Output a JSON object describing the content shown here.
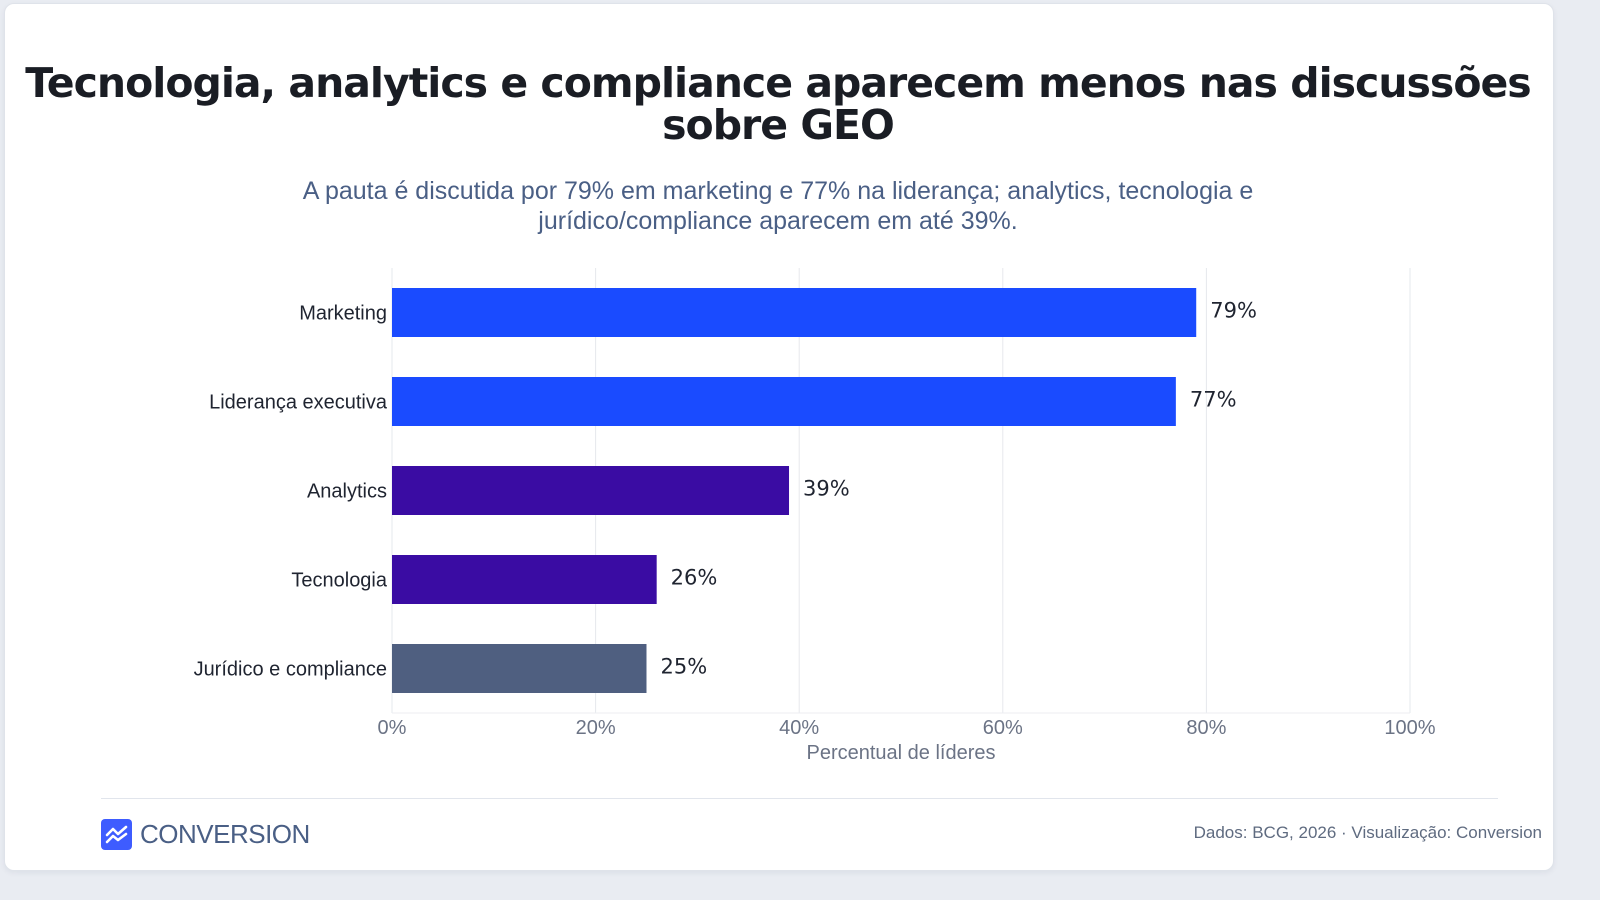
{
  "chart_data": {
    "type": "bar",
    "orientation": "horizontal",
    "title": "Tecnologia, analytics e compliance aparecem menos nas discussões sobre GEO",
    "subtitle": "A pauta é discutida por 79% em marketing e 77% na liderança; analytics, tecnologia e jurídico/compliance aparecem em até 39%.",
    "categories": [
      "Marketing",
      "Liderança executiva",
      "Analytics",
      "Tecnologia",
      "Jurídico e compliance"
    ],
    "values": [
      79,
      77,
      39,
      26,
      25
    ],
    "data_labels": [
      "79%",
      "77%",
      "39%",
      "26%",
      "25%"
    ],
    "bar_colors": [
      "#1a4bff",
      "#1a4bff",
      "#3a0ca3",
      "#3a0ca3",
      "#4f5f80"
    ],
    "xlabel": "Percentual de líderes",
    "xlim": [
      0,
      100
    ],
    "xticks": [
      0,
      20,
      40,
      60,
      80,
      100
    ],
    "xtick_labels": [
      "0%",
      "20%",
      "40%",
      "60%",
      "80%",
      "100%"
    ],
    "grid": "vertical",
    "legend": "none"
  },
  "footer": {
    "brand": "CONVERSION",
    "brand_icon": "trend-line-icon",
    "source": "Dados: BCG, 2026 · Visualização: Conversion"
  },
  "colors": {
    "title": "#1a1d24",
    "subtitle": "#4a5f85",
    "grid": "#e6e8ec",
    "tick_label": "#6b7385",
    "category_label": "#1f2430",
    "value_label": "#1f2430",
    "brand": "#3e5cff"
  }
}
